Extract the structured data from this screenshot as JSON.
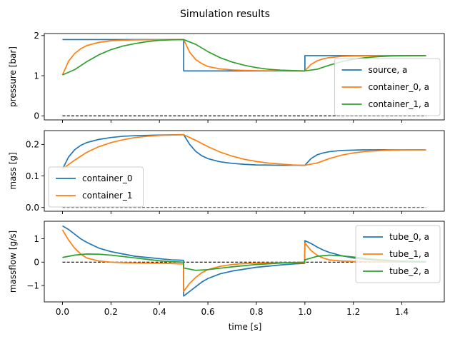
{
  "chart_data": {
    "title": "Simulation results",
    "xlabel": "time [s]",
    "xlim": [
      -0.075,
      1.575
    ],
    "xticks": [
      0.0,
      0.2,
      0.4,
      0.6,
      0.8,
      1.0,
      1.2,
      1.4
    ],
    "xtick_labels": [
      "0.0",
      "0.2",
      "0.4",
      "0.6",
      "0.8",
      "1.0",
      "1.2",
      "1.4"
    ],
    "colors": {
      "blue": "#1f77b4",
      "orange": "#ff7f0e",
      "green": "#2ca02c",
      "reference": "#000000"
    },
    "panels": [
      {
        "type": "line",
        "ylabel": "pressure [bar]",
        "ylim": [
          -0.1,
          2.05
        ],
        "yticks": [
          0,
          1,
          2
        ],
        "ytick_labels": [
          "0",
          "1",
          "2"
        ],
        "legend": "lower-right",
        "reference_line": {
          "y": 0,
          "x": [
            0,
            1.5
          ],
          "style": "dashed",
          "color": "#000000"
        },
        "series": [
          {
            "name": "source, a",
            "color": "#1f77b4",
            "x": [
              0.0,
              0.5,
              0.5,
              1.0,
              1.0,
              1.5
            ],
            "y": [
              1.9,
              1.9,
              1.12,
              1.12,
              1.5,
              1.5
            ]
          },
          {
            "name": "container_0, a",
            "color": "#ff7f0e",
            "x": [
              0.0,
              0.025,
              0.05,
              0.075,
              0.1,
              0.15,
              0.2,
              0.25,
              0.3,
              0.4,
              0.5,
              0.525,
              0.55,
              0.575,
              0.6,
              0.65,
              0.7,
              0.75,
              0.8,
              0.9,
              1.0,
              1.025,
              1.05,
              1.075,
              1.1,
              1.15,
              1.2,
              1.25,
              1.3,
              1.4,
              1.5
            ],
            "y": [
              1.02,
              1.36,
              1.55,
              1.67,
              1.75,
              1.83,
              1.87,
              1.885,
              1.893,
              1.898,
              1.9,
              1.58,
              1.4,
              1.3,
              1.23,
              1.17,
              1.145,
              1.133,
              1.127,
              1.122,
              1.12,
              1.28,
              1.37,
              1.42,
              1.45,
              1.48,
              1.492,
              1.496,
              1.498,
              1.5,
              1.5
            ]
          },
          {
            "name": "container_1, a",
            "color": "#2ca02c",
            "x": [
              0.0,
              0.05,
              0.1,
              0.15,
              0.2,
              0.25,
              0.3,
              0.35,
              0.4,
              0.45,
              0.5,
              0.55,
              0.6,
              0.65,
              0.7,
              0.75,
              0.8,
              0.85,
              0.9,
              0.95,
              1.0,
              1.05,
              1.1,
              1.15,
              1.2,
              1.25,
              1.3,
              1.35,
              1.4,
              1.45,
              1.5
            ],
            "y": [
              1.02,
              1.15,
              1.35,
              1.52,
              1.65,
              1.74,
              1.8,
              1.85,
              1.88,
              1.895,
              1.9,
              1.78,
              1.6,
              1.45,
              1.34,
              1.26,
              1.2,
              1.16,
              1.14,
              1.128,
              1.12,
              1.16,
              1.26,
              1.35,
              1.41,
              1.45,
              1.475,
              1.49,
              1.497,
              1.5,
              1.5
            ]
          }
        ]
      },
      {
        "type": "line",
        "ylabel": "mass [g]",
        "ylim": [
          -0.012,
          0.244
        ],
        "yticks": [
          0.0,
          0.1,
          0.2
        ],
        "ytick_labels": [
          "0.0",
          "0.1",
          "0.2"
        ],
        "legend": "lower-left",
        "reference_line": {
          "y": 0,
          "x": [
            0,
            1.5
          ],
          "style": "dashed",
          "color": "#555555"
        },
        "series": [
          {
            "name": "container_0",
            "color": "#1f77b4",
            "x": [
              0.0,
              0.025,
              0.05,
              0.075,
              0.1,
              0.15,
              0.2,
              0.25,
              0.3,
              0.4,
              0.5,
              0.525,
              0.55,
              0.575,
              0.6,
              0.65,
              0.7,
              0.75,
              0.8,
              0.9,
              1.0,
              1.025,
              1.05,
              1.075,
              1.1,
              1.15,
              1.2,
              1.25,
              1.3,
              1.4,
              1.5
            ],
            "y": [
              0.122,
              0.16,
              0.183,
              0.197,
              0.206,
              0.216,
              0.222,
              0.226,
              0.228,
              0.23,
              0.231,
              0.2,
              0.178,
              0.164,
              0.155,
              0.145,
              0.14,
              0.137,
              0.135,
              0.134,
              0.134,
              0.155,
              0.167,
              0.173,
              0.177,
              0.181,
              0.182,
              0.183,
              0.183,
              0.183,
              0.183
            ]
          },
          {
            "name": "container_1",
            "color": "#ff7f0e",
            "x": [
              0.0,
              0.05,
              0.1,
              0.15,
              0.2,
              0.25,
              0.3,
              0.35,
              0.4,
              0.45,
              0.5,
              0.55,
              0.6,
              0.65,
              0.7,
              0.75,
              0.8,
              0.85,
              0.9,
              0.95,
              1.0,
              1.05,
              1.1,
              1.15,
              1.2,
              1.25,
              1.3,
              1.35,
              1.4,
              1.45,
              1.5
            ],
            "y": [
              0.122,
              0.15,
              0.175,
              0.193,
              0.206,
              0.215,
              0.222,
              0.226,
              0.229,
              0.23,
              0.231,
              0.213,
              0.193,
              0.176,
              0.163,
              0.153,
              0.146,
              0.141,
              0.138,
              0.135,
              0.134,
              0.141,
              0.155,
              0.166,
              0.173,
              0.178,
              0.18,
              0.182,
              0.183,
              0.183,
              0.183
            ]
          }
        ]
      },
      {
        "type": "line",
        "ylabel": "massflow [g/s]",
        "ylim": [
          -1.7,
          1.75
        ],
        "yticks": [
          -1,
          0,
          1
        ],
        "ytick_labels": [
          "−1",
          "0",
          "1"
        ],
        "legend": "upper-right",
        "reference_line": {
          "y": 0,
          "x": [
            0,
            1.5
          ],
          "style": "dashed",
          "color": "#000000"
        },
        "series": [
          {
            "name": "tube_0, a",
            "color": "#1f77b4",
            "x": [
              0.0,
              0.025,
              0.05,
              0.075,
              0.1,
              0.15,
              0.2,
              0.25,
              0.3,
              0.35,
              0.4,
              0.45,
              0.499,
              0.5,
              0.525,
              0.55,
              0.575,
              0.6,
              0.65,
              0.7,
              0.75,
              0.8,
              0.85,
              0.9,
              0.95,
              0.999,
              1.0,
              1.025,
              1.05,
              1.075,
              1.1,
              1.15,
              1.2,
              1.25,
              1.3,
              1.4,
              1.5
            ],
            "y": [
              1.55,
              1.4,
              1.2,
              1.0,
              0.85,
              0.6,
              0.45,
              0.35,
              0.25,
              0.2,
              0.15,
              0.1,
              0.08,
              -1.45,
              -1.25,
              -1.05,
              -0.85,
              -0.7,
              -0.5,
              -0.38,
              -0.3,
              -0.22,
              -0.17,
              -0.12,
              -0.08,
              -0.05,
              0.92,
              0.8,
              0.65,
              0.52,
              0.42,
              0.28,
              0.18,
              0.12,
              0.08,
              0.04,
              0.02
            ]
          },
          {
            "name": "tube_1, a",
            "color": "#ff7f0e",
            "x": [
              0.0,
              0.025,
              0.05,
              0.075,
              0.1,
              0.15,
              0.2,
              0.25,
              0.3,
              0.35,
              0.4,
              0.45,
              0.499,
              0.5,
              0.525,
              0.55,
              0.575,
              0.6,
              0.65,
              0.7,
              0.75,
              0.8,
              0.85,
              0.9,
              0.95,
              0.999,
              1.0,
              1.025,
              1.05,
              1.075,
              1.1,
              1.15,
              1.2,
              1.25,
              1.3,
              1.4,
              1.5
            ],
            "y": [
              1.38,
              0.95,
              0.6,
              0.35,
              0.18,
              0.05,
              0.0,
              -0.02,
              -0.03,
              -0.04,
              -0.05,
              -0.06,
              -0.08,
              -1.25,
              -0.9,
              -0.65,
              -0.45,
              -0.32,
              -0.18,
              -0.1,
              -0.06,
              -0.04,
              -0.03,
              -0.02,
              -0.02,
              -0.02,
              0.82,
              0.5,
              0.3,
              0.18,
              0.1,
              0.05,
              0.03,
              0.02,
              0.01,
              0.0,
              0.0
            ]
          },
          {
            "name": "tube_2, a",
            "color": "#2ca02c",
            "x": [
              0.0,
              0.05,
              0.1,
              0.15,
              0.2,
              0.25,
              0.3,
              0.35,
              0.4,
              0.45,
              0.499,
              0.5,
              0.55,
              0.6,
              0.65,
              0.7,
              0.75,
              0.8,
              0.85,
              0.9,
              0.95,
              0.999,
              1.0,
              1.05,
              1.1,
              1.15,
              1.2,
              1.25,
              1.3,
              1.35,
              1.4,
              1.45,
              1.5
            ],
            "y": [
              0.2,
              0.3,
              0.35,
              0.34,
              0.3,
              0.24,
              0.18,
              0.12,
              0.06,
              0.02,
              0.0,
              -0.25,
              -0.35,
              -0.32,
              -0.26,
              -0.2,
              -0.15,
              -0.1,
              -0.07,
              -0.04,
              -0.02,
              0.0,
              0.1,
              0.25,
              0.3,
              0.27,
              0.22,
              0.16,
              0.11,
              0.07,
              0.04,
              0.02,
              0.01
            ]
          }
        ]
      }
    ]
  }
}
